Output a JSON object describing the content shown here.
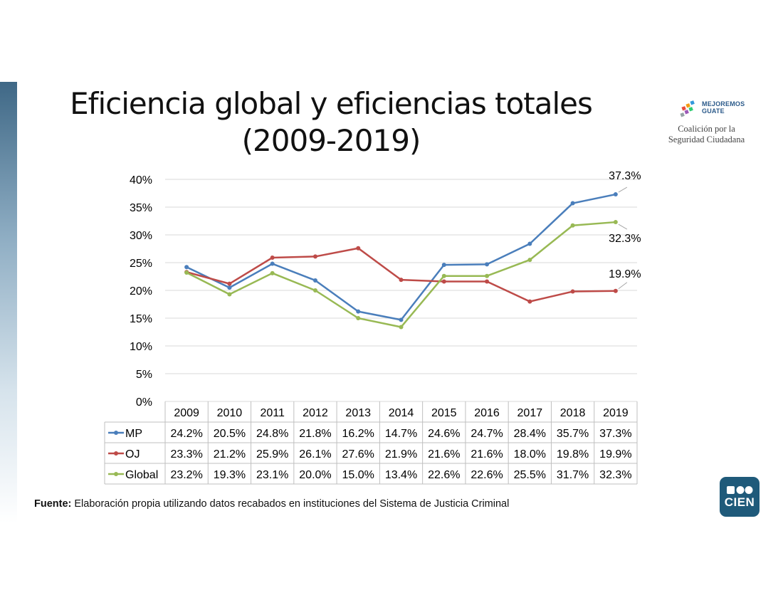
{
  "title_line1": "Eficiencia global y eficiencias totales",
  "title_line2": "(2009-2019)",
  "logo": {
    "brand_line1": "MEJOREMOS",
    "brand_line2": "GUATE",
    "sub_line1": "Coalición por la",
    "sub_line2": "Seguridad Ciudadana"
  },
  "source": {
    "label": "Fuente:",
    "text": " Elaboración propia utilizando datos recabados en instituciones del Sistema de Justicia Criminal"
  },
  "cien_logo_text": "CIEN",
  "colors": {
    "MP": "#4a7ebb",
    "OJ": "#be4b48",
    "Global": "#98b954",
    "grid": "#d9d9d9",
    "border": "#bfbfbf"
  },
  "chart_data": {
    "type": "line",
    "title": "Eficiencia global y eficiencias totales (2009-2019)",
    "categories": [
      "2009",
      "2010",
      "2011",
      "2012",
      "2013",
      "2014",
      "2015",
      "2016",
      "2017",
      "2018",
      "2019"
    ],
    "ylim": [
      0,
      40
    ],
    "yticks": [
      0,
      5,
      10,
      15,
      20,
      25,
      30,
      35,
      40
    ],
    "ytick_labels": [
      "0%",
      "5%",
      "10%",
      "15%",
      "20%",
      "25%",
      "30%",
      "35%",
      "40%"
    ],
    "grid": true,
    "series": [
      {
        "name": "MP",
        "values": [
          24.2,
          20.5,
          24.8,
          21.8,
          16.2,
          14.7,
          24.6,
          24.7,
          28.4,
          35.7,
          37.3
        ],
        "labels": [
          "24.2%",
          "20.5%",
          "24.8%",
          "21.8%",
          "16.2%",
          "14.7%",
          "24.6%",
          "24.7%",
          "28.4%",
          "35.7%",
          "37.3%"
        ],
        "end_label": "37.3%"
      },
      {
        "name": "OJ",
        "values": [
          23.3,
          21.2,
          25.9,
          26.1,
          27.6,
          21.9,
          21.6,
          21.6,
          18.0,
          19.8,
          19.9
        ],
        "labels": [
          "23.3%",
          "21.2%",
          "25.9%",
          "26.1%",
          "27.6%",
          "21.9%",
          "21.6%",
          "21.6%",
          "18.0%",
          "19.8%",
          "19.9%"
        ],
        "end_label": "19.9%"
      },
      {
        "name": "Global",
        "values": [
          23.2,
          19.3,
          23.1,
          20.0,
          15.0,
          13.4,
          22.6,
          22.6,
          25.5,
          31.7,
          32.3
        ],
        "labels": [
          "23.2%",
          "19.3%",
          "23.1%",
          "20.0%",
          "15.0%",
          "13.4%",
          "22.6%",
          "22.6%",
          "25.5%",
          "31.7%",
          "32.3%"
        ],
        "end_label": "32.3%"
      }
    ]
  }
}
